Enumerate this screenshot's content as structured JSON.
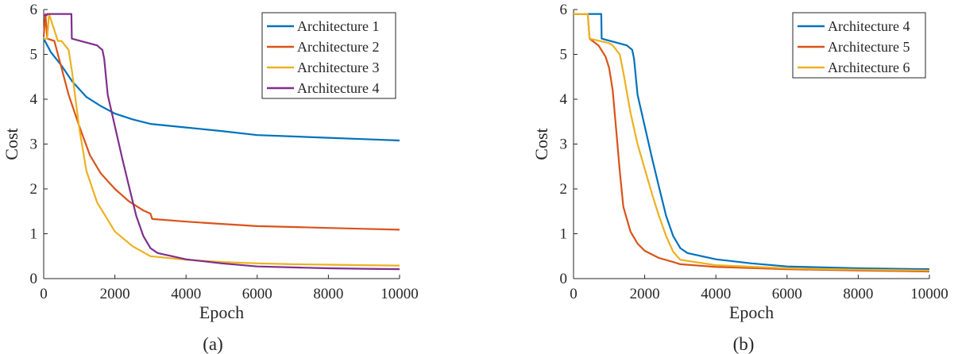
{
  "chart_data": [
    {
      "type": "line",
      "panel_label": "(a)",
      "xlabel": "Epoch",
      "ylabel": "Cost",
      "xlim": [
        0,
        10000
      ],
      "ylim": [
        0,
        6
      ],
      "xticks": [
        "0",
        "2000",
        "4000",
        "6000",
        "8000",
        "10000"
      ],
      "yticks": [
        "0",
        "1",
        "2",
        "3",
        "4",
        "5",
        "6"
      ],
      "legend_position": "top-right",
      "grid": false,
      "series": [
        {
          "name": "Architecture 1",
          "color": "#0072BD",
          "x": [
            0,
            200,
            500,
            800,
            1200,
            1600,
            2000,
            2500,
            3000,
            4000,
            5000,
            6000,
            7000,
            8000,
            9000,
            10000
          ],
          "y": [
            5.35,
            5.05,
            4.75,
            4.4,
            4.05,
            3.85,
            3.68,
            3.55,
            3.45,
            3.37,
            3.29,
            3.2,
            3.17,
            3.14,
            3.11,
            3.08
          ]
        },
        {
          "name": "Architecture 2",
          "color": "#D95319",
          "x": [
            0,
            50,
            100,
            300,
            500,
            700,
            1000,
            1300,
            1600,
            2000,
            2400,
            2800,
            3000,
            3050,
            4000,
            5000,
            6000,
            7000,
            8000,
            9000,
            10000
          ],
          "y": [
            5.4,
            5.9,
            5.35,
            5.3,
            4.7,
            4.1,
            3.4,
            2.75,
            2.35,
            2.0,
            1.72,
            1.52,
            1.45,
            1.33,
            1.27,
            1.22,
            1.17,
            1.15,
            1.13,
            1.11,
            1.09
          ]
        },
        {
          "name": "Architecture 3",
          "color": "#EDB120",
          "x": [
            0,
            100,
            150,
            400,
            500,
            700,
            800,
            1000,
            1200,
            1500,
            2000,
            2500,
            3000,
            4000,
            5000,
            6000,
            7000,
            8000,
            9000,
            10000
          ],
          "y": [
            5.35,
            5.35,
            5.9,
            5.3,
            5.3,
            5.1,
            4.6,
            3.35,
            2.4,
            1.7,
            1.05,
            0.72,
            0.5,
            0.42,
            0.37,
            0.34,
            0.32,
            0.31,
            0.3,
            0.29
          ]
        },
        {
          "name": "Architecture 4",
          "color": "#7E2F8E",
          "x": [
            0,
            80,
            100,
            780,
            790,
            1500,
            1650,
            1700,
            1800,
            2000,
            2200,
            2400,
            2600,
            2800,
            3000,
            3200,
            4000,
            5000,
            6000,
            7000,
            8000,
            9000,
            10000
          ],
          "y": [
            5.87,
            5.87,
            5.9,
            5.9,
            5.35,
            5.2,
            5.1,
            4.9,
            4.1,
            3.4,
            2.7,
            2.05,
            1.4,
            0.95,
            0.68,
            0.57,
            0.43,
            0.34,
            0.27,
            0.25,
            0.23,
            0.22,
            0.21
          ]
        }
      ]
    },
    {
      "type": "line",
      "panel_label": "(b)",
      "xlabel": "Epoch",
      "ylabel": "Cost",
      "xlim": [
        0,
        10000
      ],
      "ylim": [
        0,
        6
      ],
      "xticks": [
        "0",
        "2000",
        "4000",
        "6000",
        "8000",
        "10000"
      ],
      "yticks": [
        "0",
        "1",
        "2",
        "3",
        "4",
        "5",
        "6"
      ],
      "legend_position": "top-right",
      "grid": false,
      "series": [
        {
          "name": "Architecture 4",
          "color": "#0072BD",
          "x": [
            0,
            780,
            790,
            1500,
            1650,
            1700,
            1800,
            2000,
            2200,
            2400,
            2600,
            2800,
            3000,
            3200,
            4000,
            5000,
            6000,
            7000,
            8000,
            9000,
            10000
          ],
          "y": [
            5.9,
            5.9,
            5.35,
            5.2,
            5.1,
            4.9,
            4.1,
            3.4,
            2.7,
            2.05,
            1.4,
            0.95,
            0.68,
            0.57,
            0.43,
            0.34,
            0.27,
            0.25,
            0.23,
            0.22,
            0.21
          ]
        },
        {
          "name": "Architecture 5",
          "color": "#D95319",
          "x": [
            0,
            400,
            450,
            700,
            900,
            1000,
            1100,
            1200,
            1300,
            1400,
            1600,
            1800,
            2000,
            2400,
            2800,
            3000,
            4000,
            6000,
            8000,
            10000
          ],
          "y": [
            5.9,
            5.9,
            5.35,
            5.2,
            4.95,
            4.7,
            4.2,
            3.3,
            2.4,
            1.6,
            1.05,
            0.78,
            0.62,
            0.46,
            0.37,
            0.32,
            0.26,
            0.21,
            0.18,
            0.16
          ]
        },
        {
          "name": "Architecture 6",
          "color": "#EDB120",
          "x": [
            0,
            400,
            450,
            1000,
            1100,
            1200,
            1300,
            1400,
            1600,
            1800,
            2000,
            2200,
            2400,
            2600,
            2800,
            3000,
            4000,
            6000,
            8000,
            10000
          ],
          "y": [
            5.9,
            5.9,
            5.35,
            5.25,
            5.2,
            5.1,
            5.0,
            4.6,
            3.7,
            3.0,
            2.45,
            1.9,
            1.4,
            0.95,
            0.6,
            0.42,
            0.3,
            0.23,
            0.2,
            0.18
          ]
        }
      ]
    }
  ]
}
